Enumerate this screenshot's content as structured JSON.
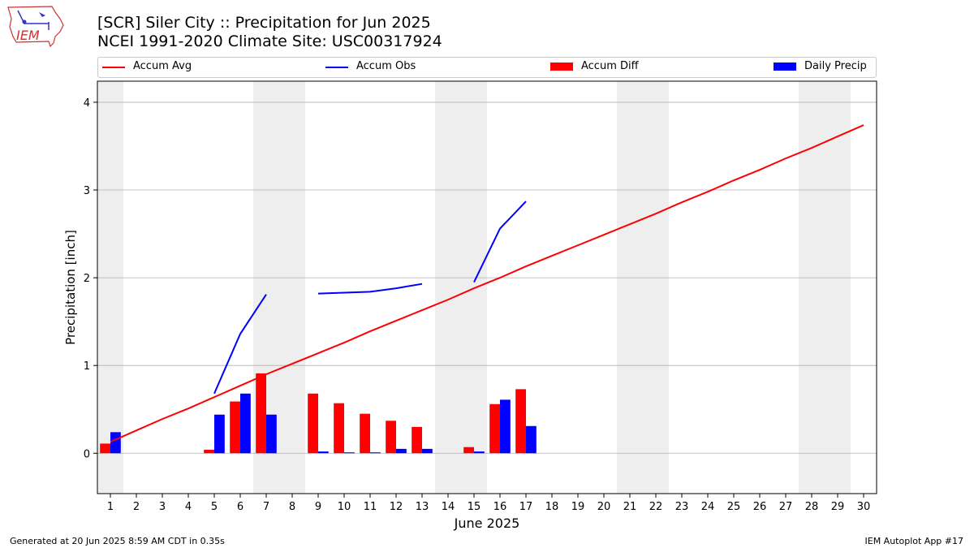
{
  "header": {
    "title_line1": "[SCR] Siler City :: Precipitation for Jun 2025",
    "title_line2": "NCEI 1991-2020 Climate Site: USC00317924",
    "logo_text": "IEM"
  },
  "legend": {
    "accum_avg": "Accum Avg",
    "accum_obs": "Accum Obs",
    "accum_diff": "Accum Diff",
    "daily_precip": "Daily Precip"
  },
  "colors": {
    "avg": "#ff0000",
    "obs": "#0000ff",
    "diff": "#ff0000",
    "daily": "#0000ff",
    "weekend": "#eeeeee",
    "grid": "#b0b0b0"
  },
  "footer": {
    "left": "Generated at 20 Jun 2025 8:59 AM CDT in 0.35s",
    "right": "IEM Autoplot App #17"
  },
  "chart_data": {
    "type": "bar",
    "title": "[SCR] Siler City :: Precipitation for Jun 2025",
    "subtitle": "NCEI 1991-2020 Climate Site: USC00317924",
    "xlabel": "June 2025",
    "ylabel": "Precipitation [inch]",
    "x": [
      1,
      2,
      3,
      4,
      5,
      6,
      7,
      8,
      9,
      10,
      11,
      12,
      13,
      14,
      15,
      16,
      17,
      18,
      19,
      20,
      21,
      22,
      23,
      24,
      25,
      26,
      27,
      28,
      29,
      30
    ],
    "xlim": [
      0.5,
      30.5
    ],
    "ylim": [
      -0.46,
      4.24
    ],
    "yticks": [
      0,
      1,
      2,
      3,
      4
    ],
    "grid": "horizontal",
    "legend_position": "top",
    "shaded_days": [
      [
        0.5,
        1.5
      ],
      [
        6.5,
        8.5
      ],
      [
        13.5,
        15.5
      ],
      [
        20.5,
        22.5
      ],
      [
        27.5,
        29.5
      ]
    ],
    "series": [
      {
        "name": "Accum Avg",
        "kind": "line",
        "x": [
          1,
          2,
          3,
          4,
          5,
          6,
          7,
          8,
          9,
          10,
          11,
          12,
          13,
          14,
          15,
          16,
          17,
          18,
          19,
          20,
          21,
          22,
          23,
          24,
          25,
          26,
          27,
          28,
          29,
          30
        ],
        "values": [
          0.13,
          0.26,
          0.39,
          0.51,
          0.64,
          0.77,
          0.9,
          1.02,
          1.14,
          1.26,
          1.39,
          1.51,
          1.63,
          1.75,
          1.88,
          2.0,
          2.13,
          2.25,
          2.37,
          2.49,
          2.61,
          2.73,
          2.86,
          2.98,
          3.11,
          3.23,
          3.36,
          3.48,
          3.61,
          3.74
        ]
      },
      {
        "name": "Accum Obs",
        "kind": "line",
        "segments": [
          {
            "x": [
              5,
              6,
              7
            ],
            "values": [
              0.68,
              1.36,
              1.81
            ]
          },
          {
            "x": [
              9,
              10,
              11,
              12,
              13
            ],
            "values": [
              1.82,
              1.83,
              1.84,
              1.88,
              1.93
            ]
          },
          {
            "x": [
              15,
              16,
              17
            ],
            "values": [
              1.95,
              2.56,
              2.87
            ]
          }
        ]
      },
      {
        "name": "Accum Diff",
        "kind": "bar",
        "x": [
          1,
          5,
          6,
          7,
          9,
          10,
          11,
          12,
          13,
          15,
          16,
          17
        ],
        "values": [
          0.11,
          0.04,
          0.59,
          0.91,
          0.68,
          0.57,
          0.45,
          0.37,
          0.3,
          0.07,
          0.56,
          0.73
        ]
      },
      {
        "name": "Daily Precip",
        "kind": "bar",
        "x": [
          1,
          5,
          6,
          7,
          9,
          10,
          11,
          12,
          13,
          15,
          16,
          17
        ],
        "values": [
          0.24,
          0.44,
          0.68,
          0.44,
          0.02,
          0.01,
          0.01,
          0.05,
          0.05,
          0.02,
          0.61,
          0.31
        ]
      }
    ]
  }
}
